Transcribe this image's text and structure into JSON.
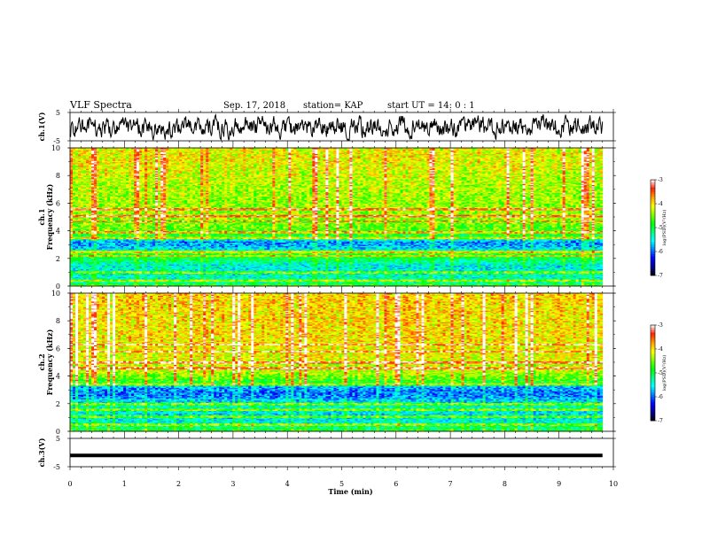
{
  "header": {
    "title": "VLF Spectra",
    "date": "Sep. 17, 2018",
    "station": "station= KAP",
    "start": "start  UT =   14: 0  : 1"
  },
  "chart_data": [
    {
      "id": "ch1-waveform",
      "type": "line",
      "ylabel": "ch.1(V)",
      "ylim": [
        -5,
        5
      ],
      "yticks": [
        "5",
        "-5"
      ],
      "xlim": [
        0,
        10
      ],
      "data_extent_min": 9.8,
      "x_step_min": 0.01,
      "seed": 7,
      "style": "noise"
    },
    {
      "id": "ch1-spectrogram",
      "type": "heatmap",
      "ylabel": "ch.1\nFrequency  (kHz)",
      "ylim": [
        0,
        10
      ],
      "yticks": [
        "0",
        "2",
        "4",
        "6",
        "8",
        "10"
      ],
      "xlim": [
        0,
        10
      ],
      "data_extent_min": 9.8,
      "cells": {
        "nx": 200,
        "ny": 120
      },
      "seed": 11,
      "band_profile": [
        [
          0.0,
          -4.6
        ],
        [
          0.3,
          -5.3
        ],
        [
          0.8,
          -5.4
        ],
        [
          1.5,
          -5.5
        ],
        [
          2.0,
          -5.0
        ],
        [
          2.4,
          -4.7
        ],
        [
          2.7,
          -5.6
        ],
        [
          3.2,
          -5.9
        ],
        [
          3.6,
          -4.9
        ],
        [
          4.2,
          -4.6
        ],
        [
          5.0,
          -4.4
        ],
        [
          6.0,
          -4.4
        ],
        [
          7.5,
          -4.3
        ],
        [
          9.0,
          -4.1
        ],
        [
          10.0,
          -4.1
        ]
      ],
      "hlines_khz": [
        0.4,
        1.0,
        2.2,
        2.5,
        3.5,
        3.9,
        4.7,
        5.1,
        5.6
      ],
      "colorbar": {
        "label": "log(PSD)(V²/Hz)",
        "min": -7,
        "max": -3,
        "ticks": [
          "-3",
          "-4",
          "-5",
          "-6",
          "-7"
        ]
      }
    },
    {
      "id": "ch2-spectrogram",
      "type": "heatmap",
      "ylabel": "ch.2\nFrequency  (kHz)",
      "ylim": [
        0,
        10
      ],
      "yticks": [
        "0",
        "2",
        "4",
        "6",
        "8",
        "10"
      ],
      "xlim": [
        0,
        10
      ],
      "data_extent_min": 9.8,
      "cells": {
        "nx": 200,
        "ny": 120
      },
      "seed": 23,
      "band_profile": [
        [
          0.0,
          -4.8
        ],
        [
          0.6,
          -5.4
        ],
        [
          1.2,
          -5.6
        ],
        [
          1.8,
          -5.3
        ],
        [
          2.2,
          -5.6
        ],
        [
          2.7,
          -6.0
        ],
        [
          3.2,
          -5.8
        ],
        [
          3.6,
          -4.8
        ],
        [
          4.3,
          -4.3
        ],
        [
          5.5,
          -4.1
        ],
        [
          7.0,
          -4.0
        ],
        [
          8.5,
          -4.0
        ],
        [
          10.0,
          -3.9
        ]
      ],
      "hlines_khz": [
        0.5,
        1.1,
        1.6,
        2.0,
        3.4,
        4.6,
        5.0,
        5.8,
        6.3
      ],
      "colorbar": {
        "label": "log(PSD)(V²/Hz)",
        "min": -7,
        "max": -3,
        "ticks": [
          "-3",
          "-4",
          "-5",
          "-6",
          "-7"
        ]
      }
    },
    {
      "id": "ch3-waveform",
      "type": "line",
      "ylabel": "ch.3(V)",
      "ylim": [
        -5,
        5
      ],
      "yticks": [
        "5",
        "-5"
      ],
      "xlim": [
        0,
        10
      ],
      "data_extent_min": 9.8,
      "x_step_min": 0.02,
      "seed": 3,
      "style": "flat",
      "level_v": -1.0,
      "xlabel": "Time  (min)",
      "xticks": [
        "0",
        "1",
        "2",
        "3",
        "4",
        "5",
        "6",
        "7",
        "8",
        "9",
        "10"
      ]
    }
  ],
  "colors": {
    "colormap": [
      "#000000",
      "#000090",
      "#0000ff",
      "#0080ff",
      "#00ffff",
      "#00ff80",
      "#00ff00",
      "#80ff00",
      "#ffff00",
      "#ffa000",
      "#ff2000",
      "#ffffff"
    ],
    "line": "#000000",
    "frame": "#000000"
  }
}
